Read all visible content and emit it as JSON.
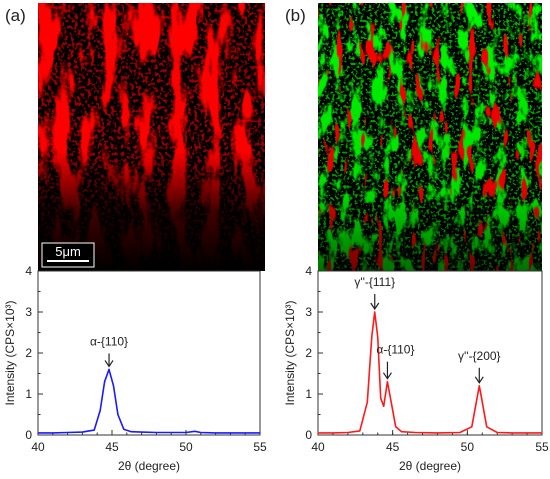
{
  "panels": {
    "a_label": "(a)",
    "b_label": "(b)"
  },
  "scale_bar": {
    "label": "5μm"
  },
  "colors": {
    "phase_red": "#ff0000",
    "phase_green": "#00ee00",
    "background": "#000000",
    "curve_a": "#1a1aff",
    "curve_b": "#ff1a1a"
  },
  "chart_data": [
    {
      "type": "line",
      "xlabel": "2θ (degree)",
      "ylabel": "Intensity (CPS×10³)",
      "xlim": [
        40,
        55
      ],
      "ylim": [
        0,
        4
      ],
      "xticks": [
        40,
        45,
        50,
        55
      ],
      "yticks": [
        0,
        1,
        2,
        3,
        4
      ],
      "series": [
        {
          "color": "#1a1aff",
          "x": [
            40,
            41,
            42,
            43,
            43.8,
            44.2,
            44.5,
            44.8,
            45.1,
            45.4,
            45.8,
            46.3,
            47,
            48,
            49,
            50,
            50.6,
            51,
            52,
            53,
            54,
            55
          ],
          "y": [
            0.05,
            0.05,
            0.06,
            0.07,
            0.12,
            0.6,
            1.3,
            1.6,
            1.2,
            0.5,
            0.14,
            0.08,
            0.07,
            0.06,
            0.06,
            0.06,
            0.09,
            0.06,
            0.05,
            0.05,
            0.05,
            0.05
          ]
        }
      ],
      "annotations": [
        {
          "text": "α-{110}",
          "x": 44.8,
          "y": 1.6
        }
      ]
    },
    {
      "type": "line",
      "xlabel": "2θ (degree)",
      "ylabel": "Intensity (CPS×10³)",
      "xlim": [
        40,
        55
      ],
      "ylim": [
        0,
        4
      ],
      "xticks": [
        40,
        45,
        50,
        55
      ],
      "yticks": [
        0,
        1,
        2,
        3,
        4
      ],
      "series": [
        {
          "color": "#ff1a1a",
          "x": [
            40,
            41,
            42,
            42.8,
            43.3,
            43.6,
            43.8,
            44.0,
            44.2,
            44.4,
            44.65,
            44.9,
            45.2,
            45.6,
            46.5,
            48,
            49.5,
            50.3,
            50.6,
            50.8,
            51.0,
            51.3,
            52,
            53,
            54,
            55
          ],
          "y": [
            0.05,
            0.05,
            0.06,
            0.1,
            0.8,
            2.4,
            3.0,
            2.4,
            0.9,
            0.7,
            1.3,
            0.8,
            0.2,
            0.08,
            0.06,
            0.05,
            0.06,
            0.2,
            0.8,
            1.2,
            0.8,
            0.2,
            0.06,
            0.05,
            0.05,
            0.05
          ]
        }
      ],
      "annotations": [
        {
          "text": "γ''-{111}",
          "x": 43.8,
          "y": 3.0
        },
        {
          "text": "α-{110}",
          "x": 44.65,
          "y": 1.3
        },
        {
          "text": "γ''-{200}",
          "x": 50.8,
          "y": 1.2
        }
      ]
    }
  ]
}
